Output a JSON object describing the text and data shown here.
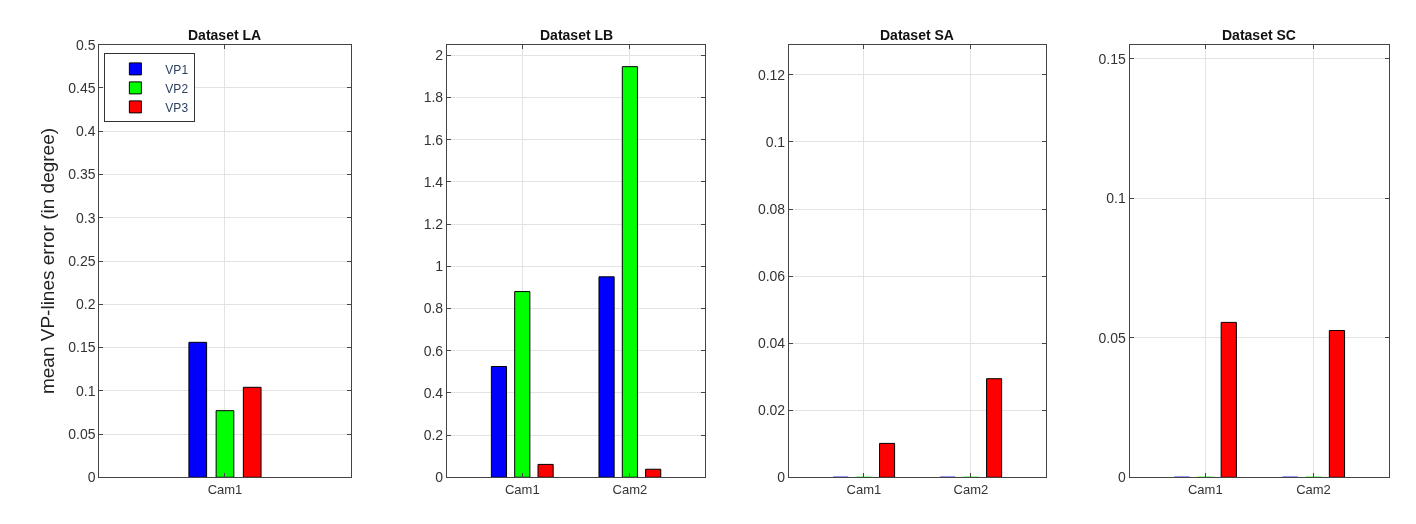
{
  "chart_data": [
    {
      "type": "bar",
      "title": "Dataset LA",
      "ylabel": "mean VP-lines error (in degree)",
      "categories": [
        "Cam1"
      ],
      "series": [
        {
          "name": "VP1",
          "color": "#0000ff",
          "values": [
            0.156
          ]
        },
        {
          "name": "VP2",
          "color": "#00ff00",
          "values": [
            0.077
          ]
        },
        {
          "name": "VP3",
          "color": "#ff0000",
          "values": [
            0.104
          ]
        }
      ],
      "ylim": [
        0,
        0.5
      ],
      "yticks": [
        0,
        0.05,
        0.1,
        0.15,
        0.2,
        0.25,
        0.3,
        0.35,
        0.4,
        0.45,
        0.5
      ],
      "grid": true,
      "legend": "top left"
    },
    {
      "type": "bar",
      "title": "Dataset LB",
      "categories": [
        "Cam1",
        "Cam2"
      ],
      "series": [
        {
          "color": "#0000ff",
          "values": [
            0.525,
            0.95
          ]
        },
        {
          "color": "#00ff00",
          "values": [
            0.88,
            1.946
          ]
        },
        {
          "color": "#ff0000",
          "values": [
            0.061,
            0.038
          ]
        }
      ],
      "ylim": [
        0,
        2.05
      ],
      "yticks": [
        0,
        0.2,
        0.4,
        0.6,
        0.8,
        1,
        1.2,
        1.4,
        1.6,
        1.8,
        2
      ],
      "grid": true
    },
    {
      "type": "bar",
      "title": "Dataset SA",
      "categories": [
        "Cam1",
        "Cam2"
      ],
      "series": [
        {
          "color": "#0000ff",
          "values": [
            0,
            0
          ]
        },
        {
          "color": "#00ff00",
          "values": [
            0,
            0
          ]
        },
        {
          "color": "#ff0000",
          "values": [
            0.0101,
            0.0294
          ]
        }
      ],
      "ylim": [
        0,
        0.129
      ],
      "yticks": [
        0,
        0.02,
        0.04,
        0.06,
        0.08,
        0.1,
        0.12
      ],
      "grid": true
    },
    {
      "type": "bar",
      "title": "Dataset SC",
      "categories": [
        "Cam1",
        "Cam2"
      ],
      "series": [
        {
          "color": "#0000ff",
          "values": [
            0,
            0
          ]
        },
        {
          "color": "#00ff00",
          "values": [
            0,
            0
          ]
        },
        {
          "color": "#ff0000",
          "values": [
            0.0555,
            0.0526
          ]
        }
      ],
      "ylim": [
        0,
        0.155
      ],
      "yticks": [
        0,
        0.05,
        0.1,
        0.15
      ],
      "grid": true
    }
  ]
}
